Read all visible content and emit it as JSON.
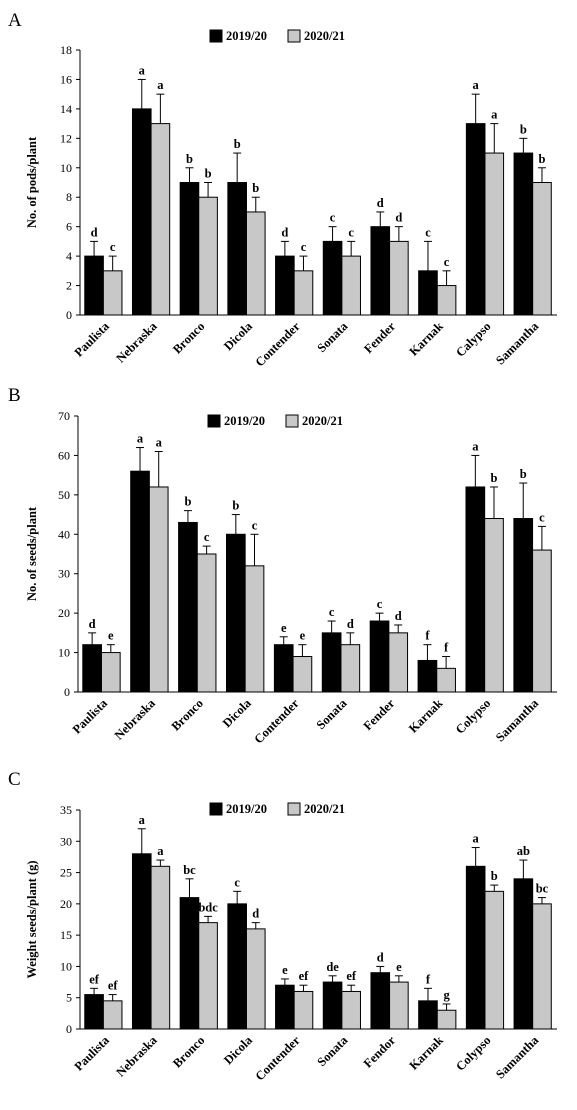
{
  "colors": {
    "series1": "#000000",
    "series2": "#c8c8c8",
    "stroke": "#000000"
  },
  "chart_data": [
    {
      "type": "bar",
      "panel": "A",
      "ylabel": "No. of pods/plant",
      "ylim": [
        0,
        18
      ],
      "yticks": [
        0,
        2,
        4,
        6,
        8,
        10,
        12,
        14,
        16,
        18
      ],
      "legend_placement": "top-center",
      "categories": [
        "Paulista",
        "Nebraska",
        "Bronco",
        "Dicola",
        "Contender",
        "Sonata",
        "Fender",
        "Karnak",
        "Calypso",
        "Samantha"
      ],
      "series": [
        {
          "name": "2019/20",
          "values": [
            4,
            14,
            9,
            9,
            4,
            5,
            6,
            3,
            13,
            11
          ],
          "errors": [
            1,
            2,
            1,
            2,
            1,
            1,
            1,
            2,
            2,
            1
          ],
          "labels": [
            "d",
            "a",
            "b",
            "b",
            "d",
            "c",
            "d",
            "c",
            "a",
            "b"
          ]
        },
        {
          "name": "2020/21",
          "values": [
            3,
            13,
            8,
            7,
            3,
            4,
            5,
            2,
            11,
            9
          ],
          "errors": [
            1,
            2,
            1,
            1,
            1,
            1,
            1,
            1,
            2,
            1
          ],
          "labels": [
            "c",
            "a",
            "b",
            "b",
            "c",
            "c",
            "d",
            "c",
            "a",
            "b"
          ]
        }
      ]
    },
    {
      "type": "bar",
      "panel": "B",
      "ylabel": "No. of seeds/plant",
      "ylim": [
        0,
        70
      ],
      "yticks": [
        0,
        10,
        20,
        30,
        40,
        50,
        60,
        70
      ],
      "legend_placement": "top-center",
      "categories": [
        "Paulista",
        "Nebraska",
        "Bronco",
        "Dicola",
        "Contender",
        "Sonata",
        "Fender",
        "Karnak",
        "Colypso",
        "Samantha"
      ],
      "series": [
        {
          "name": "2019/20",
          "values": [
            12,
            56,
            43,
            40,
            12,
            15,
            18,
            8,
            52,
            44
          ],
          "errors": [
            3,
            6,
            3,
            5,
            2,
            3,
            2,
            4,
            8,
            9
          ],
          "labels": [
            "d",
            "a",
            "b",
            "b",
            "e",
            "c",
            "c",
            "f",
            "a",
            "b"
          ]
        },
        {
          "name": "2020/21",
          "values": [
            10,
            52,
            35,
            32,
            9,
            12,
            15,
            6,
            44,
            36
          ],
          "errors": [
            2,
            9,
            2,
            8,
            3,
            3,
            2,
            3,
            8,
            6
          ],
          "labels": [
            "e",
            "a",
            "c",
            "c",
            "e",
            "d",
            "d",
            "f",
            "b",
            "c"
          ]
        }
      ]
    },
    {
      "type": "bar",
      "panel": "C",
      "ylabel": "Weight seeds/plant (g)",
      "ylim": [
        0,
        35
      ],
      "yticks": [
        0,
        5,
        10,
        15,
        20,
        25,
        30,
        35
      ],
      "legend_placement": "top-center",
      "categories": [
        "Paulista",
        "Nebraska",
        "Bronco",
        "Dicola",
        "Contender",
        "Sonata",
        "Fendor",
        "Karnak",
        "Colypso",
        "Samantha"
      ],
      "series": [
        {
          "name": "2019/20",
          "values": [
            5.5,
            28,
            21,
            20,
            7,
            7.5,
            9,
            4.5,
            26,
            24
          ],
          "errors": [
            1,
            4,
            3,
            2,
            1,
            1,
            1,
            2,
            3,
            3
          ],
          "labels": [
            "ef",
            "a",
            "bc",
            "c",
            "e",
            "de",
            "d",
            "f",
            "a",
            "ab"
          ]
        },
        {
          "name": "2020/21",
          "values": [
            4.5,
            26,
            17,
            16,
            6,
            6,
            7.5,
            3,
            22,
            20
          ],
          "errors": [
            1,
            1,
            1,
            1,
            1,
            1,
            1,
            1,
            1,
            1
          ],
          "labels": [
            "ef",
            "a",
            "bdc",
            "d",
            "ef",
            "ef",
            "e",
            "g",
            "b",
            "bc"
          ]
        }
      ]
    }
  ]
}
